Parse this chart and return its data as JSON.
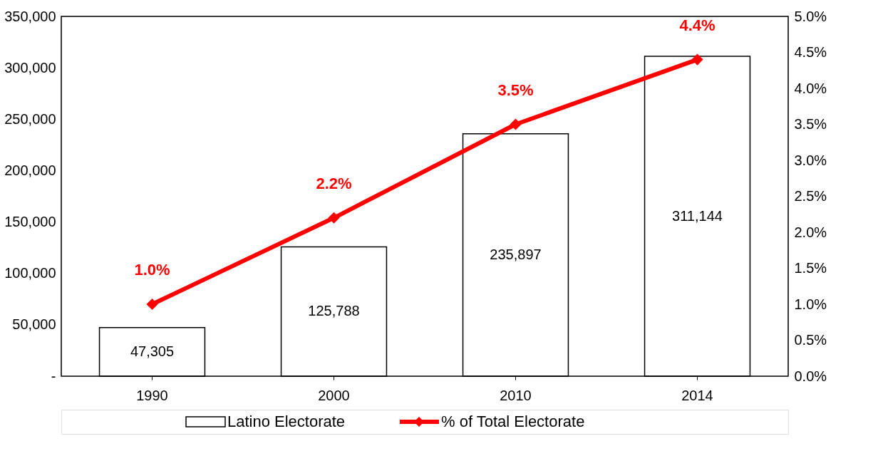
{
  "chart_data": {
    "type": "bar",
    "categories": [
      "1990",
      "2000",
      "2010",
      "2014"
    ],
    "series": [
      {
        "name": "Latino Electorate",
        "color": "#ffffff",
        "values": [
          47305,
          125788,
          235897,
          311144
        ],
        "value_labels": [
          "47,305",
          "125,788",
          "235,897",
          "311,144"
        ]
      },
      {
        "name": "% of Total Electorate",
        "type": "line",
        "axis": "y2",
        "color": "#ff0000",
        "values": [
          1.0,
          2.2,
          3.5,
          4.4
        ],
        "value_labels": [
          "1.0%",
          "2.2%",
          "3.5%",
          "4.4%"
        ]
      }
    ],
    "ylim": [
      0,
      350000
    ],
    "yticks": [
      {
        "value": 0,
        "label": "-"
      },
      {
        "value": 50000,
        "label": "50,000"
      },
      {
        "value": 100000,
        "label": "100,000"
      },
      {
        "value": 150000,
        "label": "150,000"
      },
      {
        "value": 200000,
        "label": "200,000"
      },
      {
        "value": 250000,
        "label": "250,000"
      },
      {
        "value": 300000,
        "label": "300,000"
      },
      {
        "value": 350000,
        "label": "350,000"
      }
    ],
    "y2lim": [
      0,
      5
    ],
    "y2ticks": [
      {
        "value": 0,
        "label": "0.0%"
      },
      {
        "value": 0.5,
        "label": "0.5%"
      },
      {
        "value": 1,
        "label": "1.0%"
      },
      {
        "value": 1.5,
        "label": "1.5%"
      },
      {
        "value": 2,
        "label": "2.0%"
      },
      {
        "value": 2.5,
        "label": "2.5%"
      },
      {
        "value": 3,
        "label": "3.0%"
      },
      {
        "value": 3.5,
        "label": "3.5%"
      },
      {
        "value": 4,
        "label": "4.0%"
      },
      {
        "value": 4.5,
        "label": "4.5%"
      },
      {
        "value": 5,
        "label": "5.0%"
      }
    ],
    "marker": "diamond",
    "line_style": "solid",
    "grid": false,
    "legend": "bottom"
  }
}
